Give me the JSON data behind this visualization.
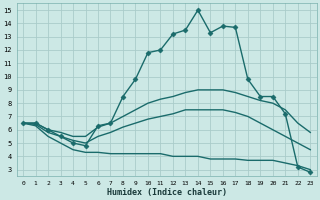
{
  "xlabel": "Humidex (Indice chaleur)",
  "background_color": "#cce8e5",
  "grid_color": "#aaccca",
  "line_color": "#1a6b6b",
  "xlim": [
    -0.5,
    23.5
  ],
  "ylim": [
    2.5,
    15.5
  ],
  "yticks": [
    3,
    4,
    5,
    6,
    7,
    8,
    9,
    10,
    11,
    12,
    13,
    14,
    15
  ],
  "xticks": [
    0,
    1,
    2,
    3,
    4,
    5,
    6,
    7,
    8,
    9,
    10,
    11,
    12,
    13,
    14,
    15,
    16,
    17,
    18,
    19,
    20,
    21,
    22,
    23
  ],
  "lines": [
    {
      "x": [
        0,
        1,
        2,
        3,
        4,
        5,
        6,
        7,
        8,
        9,
        10,
        11,
        12,
        13,
        14,
        15,
        16,
        17,
        18,
        19,
        20,
        21,
        22,
        23
      ],
      "y": [
        6.5,
        6.5,
        6.0,
        5.5,
        5.0,
        4.8,
        6.3,
        6.5,
        8.5,
        9.8,
        11.8,
        12.0,
        13.2,
        13.5,
        15.0,
        13.3,
        13.8,
        13.7,
        9.8,
        8.5,
        8.5,
        7.2,
        3.2,
        2.8
      ],
      "marker": "D",
      "markersize": 2.5,
      "linewidth": 1.0
    },
    {
      "x": [
        0,
        1,
        2,
        3,
        4,
        5,
        6,
        7,
        8,
        9,
        10,
        11,
        12,
        13,
        14,
        15,
        16,
        17,
        18,
        19,
        20,
        21,
        22,
        23
      ],
      "y": [
        6.5,
        6.5,
        6.0,
        5.8,
        5.5,
        5.5,
        6.2,
        6.5,
        7.0,
        7.5,
        8.0,
        8.3,
        8.5,
        8.8,
        9.0,
        9.0,
        9.0,
        8.8,
        8.5,
        8.2,
        8.0,
        7.5,
        6.5,
        5.8
      ],
      "marker": null,
      "markersize": 0,
      "linewidth": 1.0
    },
    {
      "x": [
        0,
        1,
        2,
        3,
        4,
        5,
        6,
        7,
        8,
        9,
        10,
        11,
        12,
        13,
        14,
        15,
        16,
        17,
        18,
        19,
        20,
        21,
        22,
        23
      ],
      "y": [
        6.5,
        6.4,
        5.8,
        5.5,
        5.2,
        5.0,
        5.5,
        5.8,
        6.2,
        6.5,
        6.8,
        7.0,
        7.2,
        7.5,
        7.5,
        7.5,
        7.5,
        7.3,
        7.0,
        6.5,
        6.0,
        5.5,
        5.0,
        4.5
      ],
      "marker": null,
      "markersize": 0,
      "linewidth": 1.0
    },
    {
      "x": [
        0,
        1,
        2,
        3,
        4,
        5,
        6,
        7,
        8,
        9,
        10,
        11,
        12,
        13,
        14,
        15,
        16,
        17,
        18,
        19,
        20,
        21,
        22,
        23
      ],
      "y": [
        6.5,
        6.3,
        5.5,
        5.0,
        4.5,
        4.3,
        4.3,
        4.2,
        4.2,
        4.2,
        4.2,
        4.2,
        4.0,
        4.0,
        4.0,
        3.8,
        3.8,
        3.8,
        3.7,
        3.7,
        3.7,
        3.5,
        3.3,
        3.0
      ],
      "marker": null,
      "markersize": 0,
      "linewidth": 1.0
    }
  ]
}
